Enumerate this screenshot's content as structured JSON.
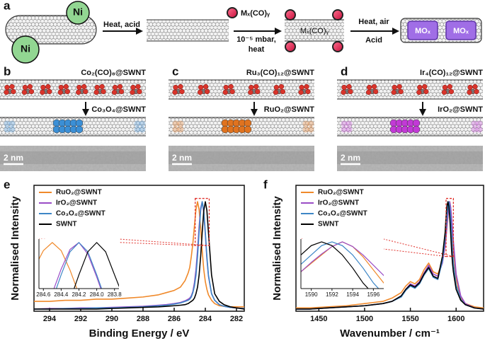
{
  "schematic": {
    "label": "a",
    "catalyst": [
      "Ni",
      "Ni"
    ],
    "step1": "Heat, acid",
    "precursor": "Mₓ(CO)ᵧ",
    "step2": [
      "10⁻⁵ mbar,",
      "heat"
    ],
    "filled": "Mₓ(CO)ᵧ",
    "step3": [
      "Heat, air",
      "Acid"
    ],
    "oxide": [
      "MOₓ",
      "MOₓ"
    ]
  },
  "tem_panels": [
    {
      "label": "b",
      "precursor": "Co₂(CO)₈@SWNT",
      "product": "Co₃O₄@SWNT",
      "scale_bar": "2 nm"
    },
    {
      "label": "c",
      "precursor": "Ru₃(CO)₁₂@SWNT",
      "product": "RuO₂@SWNT",
      "scale_bar": "2 nm"
    },
    {
      "label": "d",
      "precursor": "Ir₄(CO)₁₂@SWNT",
      "product": "IrO₂@SWNT",
      "scale_bar": "2 nm"
    }
  ],
  "chart_data": [
    {
      "type": "line",
      "label": "e",
      "xlabel": "Binding Energy / eV",
      "ylabel": "Normalised Intensity",
      "xlim": [
        295,
        281.5
      ],
      "ylim": [
        0,
        1.15
      ],
      "xticks": [
        294,
        292,
        290,
        288,
        286,
        284,
        282
      ],
      "x": [
        295,
        294,
        293,
        292,
        291,
        290,
        289,
        288,
        287,
        286.5,
        286,
        285.6,
        285.3,
        285.1,
        285,
        284.9,
        284.8,
        284.7,
        284.6,
        284.5,
        284.4,
        284.3,
        284.2,
        284.1,
        284,
        283.9,
        283.8,
        283.6,
        283.4,
        283.1,
        282.8,
        282.4,
        282,
        281.5
      ],
      "series": [
        {
          "name": "RuO₂@SWNT",
          "color": "#f0892a",
          "values": [
            0.09,
            0.09,
            0.1,
            0.1,
            0.11,
            0.11,
            0.12,
            0.13,
            0.15,
            0.17,
            0.19,
            0.22,
            0.28,
            0.35,
            0.4,
            0.5,
            0.62,
            0.78,
            0.93,
            1,
            0.93,
            0.76,
            0.55,
            0.38,
            0.27,
            0.2,
            0.15,
            0.1,
            0.07,
            0.05,
            0.045,
            0.04,
            0.04,
            0.04
          ]
        },
        {
          "name": "IrO₂@SWNT",
          "color": "#9a4cc6",
          "values": [
            0.02,
            0.025,
            0.025,
            0.03,
            0.03,
            0.035,
            0.04,
            0.045,
            0.055,
            0.06,
            0.07,
            0.08,
            0.095,
            0.11,
            0.12,
            0.14,
            0.18,
            0.26,
            0.38,
            0.56,
            0.77,
            0.94,
            1,
            0.9,
            0.7,
            0.48,
            0.32,
            0.16,
            0.1,
            0.06,
            0.045,
            0.035,
            0.03,
            0.025
          ]
        },
        {
          "name": "Co₃O₄@SWNT",
          "color": "#3d86c6",
          "values": [
            0.02,
            0.02,
            0.025,
            0.025,
            0.03,
            0.03,
            0.035,
            0.04,
            0.05,
            0.055,
            0.065,
            0.075,
            0.09,
            0.1,
            0.11,
            0.13,
            0.17,
            0.23,
            0.33,
            0.5,
            0.72,
            0.92,
            1,
            0.92,
            0.72,
            0.5,
            0.33,
            0.16,
            0.1,
            0.06,
            0.045,
            0.035,
            0.03,
            0.025
          ]
        },
        {
          "name": "SWNT",
          "color": "#000000",
          "values": [
            0.02,
            0.02,
            0.02,
            0.02,
            0.02,
            0.025,
            0.03,
            0.035,
            0.04,
            0.045,
            0.05,
            0.055,
            0.06,
            0.07,
            0.08,
            0.09,
            0.1,
            0.12,
            0.16,
            0.22,
            0.33,
            0.5,
            0.72,
            0.92,
            1,
            0.92,
            0.72,
            0.33,
            0.16,
            0.09,
            0.06,
            0.04,
            0.03,
            0.02
          ]
        }
      ],
      "inset": {
        "xlim": [
          284.65,
          283.75
        ],
        "ylim": [
          0.6,
          1.03
        ],
        "xticks": [
          284.6,
          284.4,
          284.2,
          {
            "value": 284,
            "label": "284.0"
          },
          283.8
        ]
      }
    },
    {
      "type": "line",
      "label": "f",
      "xlabel": "Wavenumber / cm⁻¹",
      "ylabel": "Normalised Intensity",
      "xlim": [
        1425,
        1630
      ],
      "ylim": [
        0,
        1.15
      ],
      "xticks": [
        1450,
        1500,
        1550,
        1600
      ],
      "x": [
        1425,
        1440,
        1460,
        1480,
        1500,
        1510,
        1520,
        1530,
        1540,
        1545,
        1550,
        1555,
        1560,
        1565,
        1570,
        1575,
        1580,
        1585,
        1588,
        1589,
        1590,
        1591,
        1592,
        1593,
        1594,
        1595,
        1596,
        1597,
        1600,
        1605,
        1610,
        1620,
        1630
      ],
      "series": [
        {
          "name": "RuO₂@SWNT",
          "color": "#f0892a",
          "values": [
            0.03,
            0.03,
            0.04,
            0.05,
            0.07,
            0.08,
            0.09,
            0.12,
            0.17,
            0.23,
            0.27,
            0.25,
            0.29,
            0.38,
            0.44,
            0.36,
            0.34,
            0.45,
            0.6,
            0.68,
            0.77,
            0.86,
            0.95,
            1,
            0.95,
            0.84,
            0.7,
            0.56,
            0.3,
            0.12,
            0.07,
            0.04,
            0.03
          ]
        },
        {
          "name": "IrO₂@SWNT",
          "color": "#9a4cc6",
          "values": [
            0.02,
            0.02,
            0.03,
            0.04,
            0.05,
            0.06,
            0.07,
            0.09,
            0.14,
            0.2,
            0.25,
            0.23,
            0.27,
            0.35,
            0.42,
            0.34,
            0.32,
            0.44,
            0.6,
            0.68,
            0.78,
            0.87,
            0.95,
            1,
            0.95,
            0.86,
            0.75,
            0.64,
            0.34,
            0.14,
            0.07,
            0.03,
            0.02
          ]
        },
        {
          "name": "Co₃O₄@SWNT",
          "color": "#3d86c6",
          "values": [
            0.02,
            0.02,
            0.03,
            0.04,
            0.05,
            0.06,
            0.07,
            0.09,
            0.13,
            0.19,
            0.23,
            0.21,
            0.25,
            0.33,
            0.39,
            0.31,
            0.29,
            0.46,
            0.66,
            0.76,
            0.86,
            0.96,
            1,
            0.96,
            0.86,
            0.72,
            0.56,
            0.44,
            0.24,
            0.11,
            0.06,
            0.03,
            0.02
          ]
        },
        {
          "name": "SWNT",
          "color": "#000000",
          "values": [
            0.02,
            0.02,
            0.03,
            0.04,
            0.05,
            0.06,
            0.07,
            0.09,
            0.14,
            0.2,
            0.24,
            0.22,
            0.26,
            0.34,
            0.4,
            0.32,
            0.3,
            0.5,
            0.72,
            0.86,
            0.96,
            1,
            0.96,
            0.86,
            0.72,
            0.56,
            0.44,
            0.36,
            0.2,
            0.1,
            0.06,
            0.03,
            0.02
          ]
        }
      ],
      "inset": {
        "xlim": [
          1589,
          1597
        ],
        "ylim": [
          0.5,
          1.03
        ],
        "xticks": [
          1590,
          1592,
          1594,
          1596
        ]
      }
    }
  ]
}
